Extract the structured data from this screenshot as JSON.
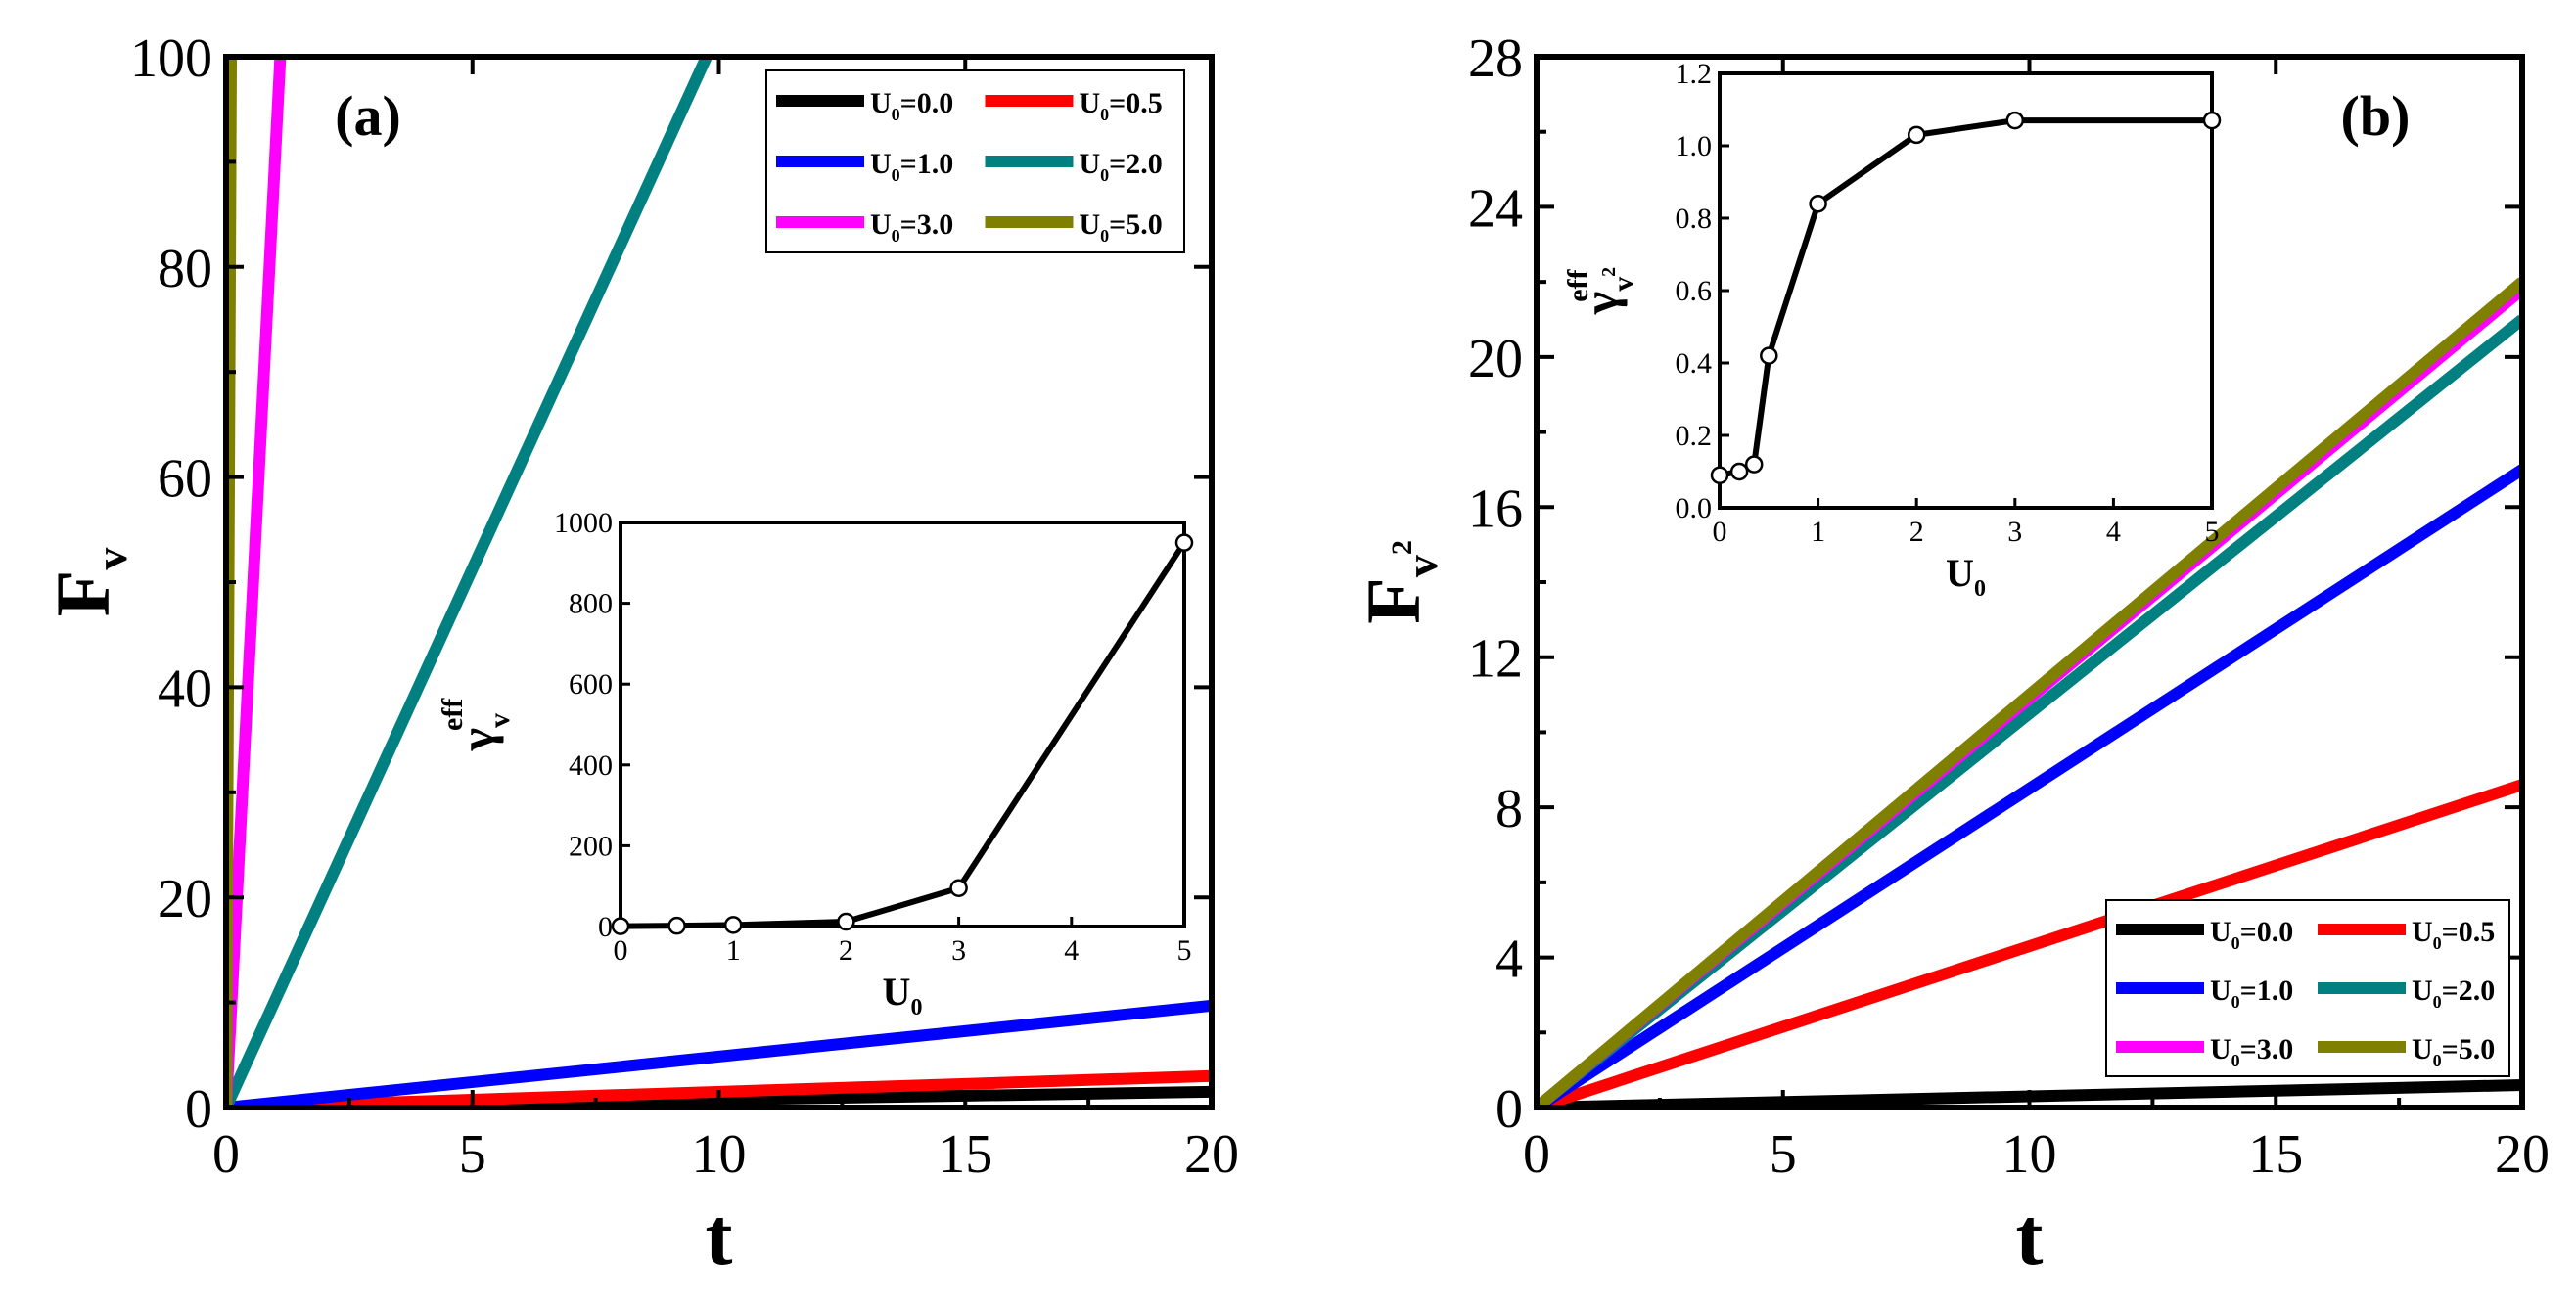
{
  "colors": {
    "black": "#000000",
    "red": "#ff0000",
    "blue": "#0000ff",
    "teal": "#008080",
    "magenta": "#ff00ff",
    "olive": "#808000"
  },
  "chart_data": [
    {
      "id": "a",
      "type": "line",
      "panel_label": "(a)",
      "xlabel": "t",
      "ylabel_main": "F",
      "ylabel_sub": "v",
      "xlim": [
        0,
        20
      ],
      "ylim": [
        0,
        100
      ],
      "xticks": [
        0,
        5,
        10,
        15,
        20
      ],
      "yticks": [
        0,
        20,
        40,
        60,
        80,
        100
      ],
      "legend_position": "top-right",
      "series": [
        {
          "name": "U0=0.0",
          "label_main": "U",
          "label_sub": "0",
          "label_val": "=0.0",
          "color": "#000000",
          "x": [
            0,
            20
          ],
          "y": [
            0,
            1.5
          ]
        },
        {
          "name": "U0=0.5",
          "label_main": "U",
          "label_sub": "0",
          "label_val": "=0.5",
          "color": "#ff0000",
          "x": [
            0,
            20
          ],
          "y": [
            0,
            3.0
          ]
        },
        {
          "name": "U0=1.0",
          "label_main": "U",
          "label_sub": "0",
          "label_val": "=1.0",
          "color": "#0000ff",
          "x": [
            0,
            20
          ],
          "y": [
            0,
            9.7
          ]
        },
        {
          "name": "U0=2.0",
          "label_main": "U",
          "label_sub": "0",
          "label_val": "=2.0",
          "color": "#008080",
          "x": [
            0,
            9.75
          ],
          "y": [
            0,
            100
          ]
        },
        {
          "name": "U0=3.0",
          "label_main": "U",
          "label_sub": "0",
          "label_val": "=3.0",
          "color": "#ff00ff",
          "x": [
            0,
            1.1
          ],
          "y": [
            0,
            100
          ]
        },
        {
          "name": "U0=5.0",
          "label_main": "U",
          "label_sub": "0",
          "label_val": "=5.0",
          "color": "#808000",
          "x": [
            0,
            0.1
          ],
          "y": [
            0,
            100
          ]
        }
      ],
      "inset": {
        "type": "line",
        "xlabel_main": "U",
        "xlabel_sub": "0",
        "ylabel_main": "γ",
        "ylabel_sub": "v",
        "ylabel_sup": "eff",
        "xlim": [
          0,
          5
        ],
        "ylim": [
          0,
          1000
        ],
        "xticks": [
          0,
          1,
          2,
          3,
          4,
          5
        ],
        "yticks": [
          0,
          200,
          400,
          600,
          800,
          1000
        ],
        "x": [
          0,
          0.5,
          1,
          2,
          3,
          5
        ],
        "y": [
          1,
          2,
          4,
          12,
          95,
          950
        ]
      }
    },
    {
      "id": "b",
      "type": "line",
      "panel_label": "(b)",
      "xlabel": "t",
      "ylabel_main": "F",
      "ylabel_sub": "v",
      "ylabel_subsup": "2",
      "xlim": [
        0,
        20
      ],
      "ylim": [
        0,
        28
      ],
      "xticks": [
        0,
        5,
        10,
        15,
        20
      ],
      "yticks": [
        0,
        4,
        8,
        12,
        16,
        20,
        24,
        28
      ],
      "legend_position": "bottom-right",
      "series": [
        {
          "name": "U0=0.0",
          "label_main": "U",
          "label_sub": "0",
          "label_val": "=0.0",
          "color": "#000000",
          "x": [
            0,
            20
          ],
          "y": [
            0,
            0.6
          ]
        },
        {
          "name": "U0=0.5",
          "label_main": "U",
          "label_sub": "0",
          "label_val": "=0.5",
          "color": "#ff0000",
          "x": [
            0,
            20
          ],
          "y": [
            0,
            8.6
          ]
        },
        {
          "name": "U0=1.0",
          "label_main": "U",
          "label_sub": "0",
          "label_val": "=1.0",
          "color": "#0000ff",
          "x": [
            0,
            20
          ],
          "y": [
            0,
            17.0
          ]
        },
        {
          "name": "U0=2.0",
          "label_main": "U",
          "label_sub": "0",
          "label_val": "=2.0",
          "color": "#008080",
          "x": [
            0,
            20
          ],
          "y": [
            0,
            21.0
          ]
        },
        {
          "name": "U0=3.0",
          "label_main": "U",
          "label_sub": "0",
          "label_val": "=3.0",
          "color": "#ff00ff",
          "x": [
            0,
            20
          ],
          "y": [
            0,
            21.8
          ]
        },
        {
          "name": "U0=5.0",
          "label_main": "U",
          "label_sub": "0",
          "label_val": "=5.0",
          "color": "#808000",
          "x": [
            0,
            20
          ],
          "y": [
            0,
            22.0
          ]
        }
      ],
      "inset": {
        "type": "line",
        "xlabel_main": "U",
        "xlabel_sub": "0",
        "ylabel_main": "γ",
        "ylabel_sub": "v",
        "ylabel_subsup": "2",
        "ylabel_sup": "eff",
        "xlim": [
          0,
          5
        ],
        "ylim": [
          0,
          1.2
        ],
        "xticks": [
          0,
          1,
          2,
          3,
          4,
          5
        ],
        "yticks": [
          "0.0",
          "0.2",
          "0.4",
          "0.6",
          "0.8",
          "1.0",
          "1.2"
        ],
        "x": [
          0,
          0.2,
          0.35,
          0.5,
          1,
          2,
          3,
          5
        ],
        "y": [
          0.09,
          0.1,
          0.12,
          0.42,
          0.84,
          1.03,
          1.07,
          1.07
        ]
      }
    }
  ]
}
